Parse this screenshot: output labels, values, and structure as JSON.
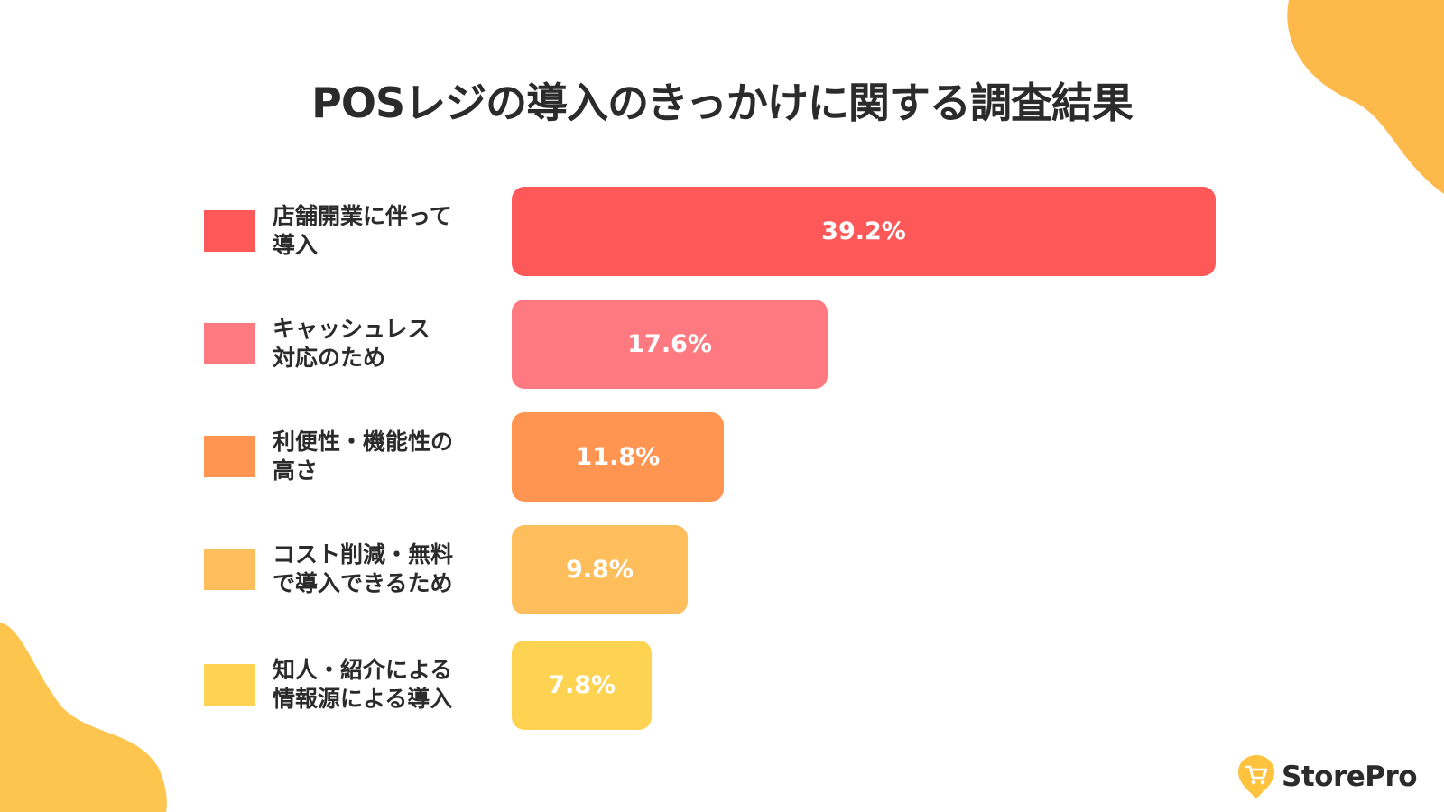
{
  "title": "POSレジの導入のきっかけに関する調査結果",
  "brand": {
    "name": "StorePro",
    "icon": "shopping-cart-pin-icon",
    "accent": "#fdc33f"
  },
  "decor_colors": [
    "#fdb94a",
    "#fdc54d"
  ],
  "chart_data": {
    "type": "bar",
    "orientation": "horizontal",
    "title": "POSレジの導入のきっかけに関する調査結果",
    "xlabel": "",
    "ylabel": "",
    "unit": "%",
    "categories": [
      "店舗開業に伴って\n導入",
      "キャッシュレス\n対応のため",
      "利便性・機能性の\n高さ",
      "コスト削減・無料\nで導入できるため",
      "知人・紹介による\n情報源による導入"
    ],
    "values": [
      39.2,
      17.6,
      11.8,
      9.8,
      7.8
    ],
    "value_labels": [
      "39.2%",
      "17.6%",
      "11.8%",
      "9.8%",
      "7.8%"
    ],
    "colors": [
      "#ff5859",
      "#ff7a80",
      "#ff9550",
      "#febe5b",
      "#fed352"
    ],
    "legend": "left of bars",
    "grid": false
  }
}
